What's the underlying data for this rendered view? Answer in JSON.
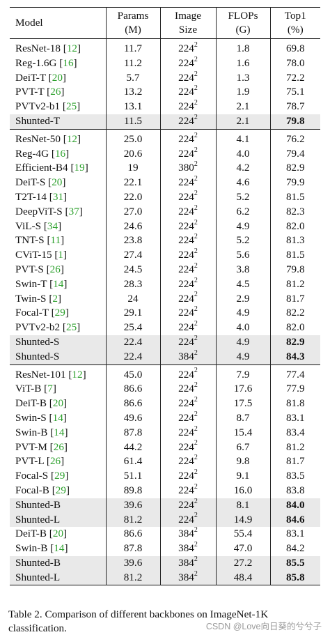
{
  "headers": {
    "model": "Model",
    "params": [
      "Params",
      "(M)"
    ],
    "image_size": [
      "Image",
      "Size"
    ],
    "flops": [
      "FLOPs",
      "(G)"
    ],
    "top1": [
      "Top1",
      "(%)"
    ]
  },
  "groups": [
    [
      {
        "name": "ResNet-18",
        "ref": "12",
        "params": "11.7",
        "size": "224",
        "flops": "1.8",
        "top1": "69.8"
      },
      {
        "name": "Reg-1.6G",
        "ref": "16",
        "params": "11.2",
        "size": "224",
        "flops": "1.6",
        "top1": "78.0"
      },
      {
        "name": "DeiT-T",
        "ref": "20",
        "params": "5.7",
        "size": "224",
        "flops": "1.3",
        "top1": "72.2"
      },
      {
        "name": "PVT-T",
        "ref": "26",
        "params": "13.2",
        "size": "224",
        "flops": "1.9",
        "top1": "75.1"
      },
      {
        "name": "PVTv2-b1",
        "ref": "25",
        "params": "13.1",
        "size": "224",
        "flops": "2.1",
        "top1": "78.7"
      },
      {
        "name": "Shunted-T",
        "ref": "",
        "params": "11.5",
        "size": "224",
        "flops": "2.1",
        "top1": "79.8",
        "highlight": true
      }
    ],
    [
      {
        "name": "ResNet-50",
        "ref": "12",
        "params": "25.0",
        "size": "224",
        "flops": "4.1",
        "top1": "76.2"
      },
      {
        "name": "Reg-4G",
        "ref": "16",
        "params": "20.6",
        "size": "224",
        "flops": "4.0",
        "top1": "79.4"
      },
      {
        "name": "Efficient-B4",
        "ref": "19",
        "params": "19",
        "size": "380",
        "flops": "4.2",
        "top1": "82.9"
      },
      {
        "name": "DeiT-S",
        "ref": "20",
        "params": "22.1",
        "size": "224",
        "flops": "4.6",
        "top1": "79.9"
      },
      {
        "name": "T2T-14",
        "ref": "31",
        "params": "22.0",
        "size": "224",
        "flops": "5.2",
        "top1": "81.5"
      },
      {
        "name": "DeepViT-S",
        "ref": "37",
        "params": "27.0",
        "size": "224",
        "flops": "6.2",
        "top1": "82.3"
      },
      {
        "name": "ViL-S",
        "ref": "34",
        "params": "24.6",
        "size": "224",
        "flops": "4.9",
        "top1": "82.0"
      },
      {
        "name": "TNT-S",
        "ref": "11",
        "params": "23.8",
        "size": "224",
        "flops": "5.2",
        "top1": "81.3"
      },
      {
        "name": "CViT-15",
        "ref": "1",
        "params": "27.4",
        "size": "224",
        "flops": "5.6",
        "top1": "81.5"
      },
      {
        "name": "PVT-S",
        "ref": "26",
        "params": "24.5",
        "size": "224",
        "flops": "3.8",
        "top1": "79.8"
      },
      {
        "name": "Swin-T",
        "ref": "14",
        "params": "28.3",
        "size": "224",
        "flops": "4.5",
        "top1": "81.2"
      },
      {
        "name": "Twin-S",
        "ref": "2",
        "params": "24",
        "size": "224",
        "flops": "2.9",
        "top1": "81.7"
      },
      {
        "name": "Focal-T",
        "ref": "29",
        "params": "29.1",
        "size": "224",
        "flops": "4.9",
        "top1": "82.2"
      },
      {
        "name": "PVTv2-b2",
        "ref": "25",
        "params": "25.4",
        "size": "224",
        "flops": "4.0",
        "top1": "82.0"
      },
      {
        "name": "Shunted-S",
        "ref": "",
        "params": "22.4",
        "size": "224",
        "flops": "4.9",
        "top1": "82.9",
        "highlight": true
      },
      {
        "name": "Shunted-S",
        "ref": "",
        "params": "22.4",
        "size": "384",
        "flops": "4.9",
        "top1": "84.3",
        "highlight": true
      }
    ],
    [
      {
        "name": "ResNet-101",
        "ref": "12",
        "params": "45.0",
        "size": "224",
        "flops": "7.9",
        "top1": "77.4"
      },
      {
        "name": "ViT-B",
        "ref": "7",
        "params": "86.6",
        "size": "224",
        "flops": "17.6",
        "top1": "77.9"
      },
      {
        "name": "DeiT-B",
        "ref": "20",
        "params": "86.6",
        "size": "224",
        "flops": "17.5",
        "top1": "81.8"
      },
      {
        "name": "Swin-S",
        "ref": "14",
        "params": "49.6",
        "size": "224",
        "flops": "8.7",
        "top1": "83.1"
      },
      {
        "name": "Swin-B",
        "ref": "14",
        "params": "87.8",
        "size": "224",
        "flops": "15.4",
        "top1": "83.4"
      },
      {
        "name": "PVT-M",
        "ref": "26",
        "params": "44.2",
        "size": "224",
        "flops": "6.7",
        "top1": "81.2"
      },
      {
        "name": "PVT-L",
        "ref": "26",
        "params": "61.4",
        "size": "224",
        "flops": "9.8",
        "top1": "81.7"
      },
      {
        "name": "Focal-S",
        "ref": "29",
        "params": "51.1",
        "size": "224",
        "flops": "9.1",
        "top1": "83.5"
      },
      {
        "name": "Focal-B",
        "ref": "29",
        "params": "89.8",
        "size": "224",
        "flops": "16.0",
        "top1": "83.8"
      },
      {
        "name": "Shunted-B",
        "ref": "",
        "params": "39.6",
        "size": "224",
        "flops": "8.1",
        "top1": "84.0",
        "highlight": true
      },
      {
        "name": "Shunted-L",
        "ref": "",
        "params": "81.2",
        "size": "224",
        "flops": "14.9",
        "top1": "84.6",
        "highlight": true
      },
      {
        "name": "DeiT-B",
        "ref": "20",
        "params": "86.6",
        "size": "384",
        "flops": "55.4",
        "top1": "83.1"
      },
      {
        "name": "Swin-B",
        "ref": "14",
        "params": "87.8",
        "size": "384",
        "flops": "47.0",
        "top1": "84.2"
      },
      {
        "name": "Shunted-B",
        "ref": "",
        "params": "39.6",
        "size": "384",
        "flops": "27.2",
        "top1": "85.5",
        "highlight": true
      },
      {
        "name": "Shunted-L",
        "ref": "",
        "params": "81.2",
        "size": "384",
        "flops": "48.4",
        "top1": "85.8",
        "highlight": true
      }
    ]
  ],
  "size_exponent": "2",
  "colors": {
    "ref": "#2ca02c",
    "highlight": "#e9e9e9"
  },
  "caption": "Table 2. Comparison of different backbones on ImageNet-1K classification.",
  "watermark": "CSDN @Love向日葵的兮兮子"
}
